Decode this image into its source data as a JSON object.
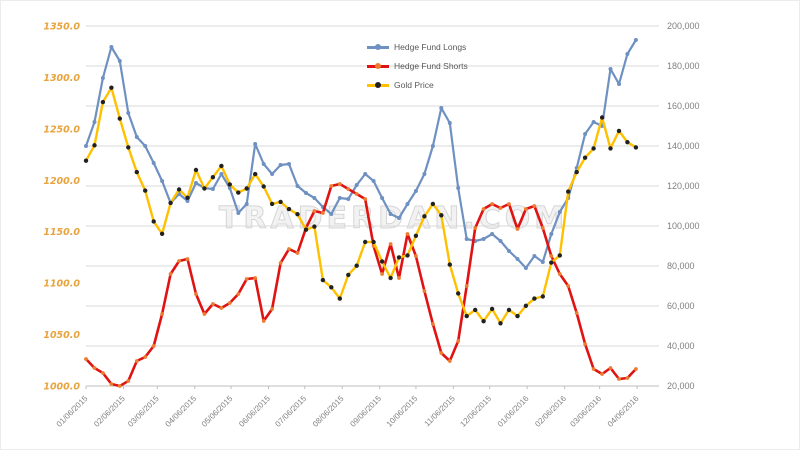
{
  "watermark": "TRADERDAN.COM",
  "chart_data": {
    "type": "line",
    "title": "",
    "grid": true,
    "legend_position": "top-center",
    "watermark": "TRADERDAN.COM",
    "x_labels": [
      "01/06/2015",
      "02/06/2015",
      "03/06/2015",
      "04/06/2015",
      "05/06/2015",
      "06/06/2015",
      "07/06/2015",
      "08/06/2015",
      "09/06/2015",
      "10/06/2015",
      "11/06/2015",
      "12/06/2015",
      "01/06/2016",
      "02/06/2016",
      "03/06/2016",
      "04/06/2016"
    ],
    "left_axis": {
      "title": "",
      "min": 1000,
      "max": 1350,
      "step": 50,
      "labels": [
        "1350.0",
        "1300.0",
        "1250.0",
        "1200.0",
        "1150.0",
        "1100.0",
        "1050.0",
        "1000.0"
      ],
      "label_color": "#e8a33c"
    },
    "right_axis": {
      "title": "",
      "min": 20000,
      "max": 200000,
      "step": 20000,
      "labels": [
        "200,000",
        "180,000",
        "160,000",
        "140,000",
        "120,000",
        "100,000",
        "80,000",
        "60,000",
        "40,000",
        "20,000"
      ],
      "label_color": "#7f7f7f"
    },
    "series": [
      {
        "name": "Hedge Fund Longs",
        "axis": "right",
        "color": "#6e91c2",
        "marker_color": "#6e91c2",
        "values": [
          140000,
          152000,
          174000,
          189500,
          182500,
          156500,
          144500,
          140000,
          131500,
          122500,
          111500,
          116000,
          112500,
          121500,
          119000,
          118500,
          126000,
          119000,
          106500,
          111000,
          141000,
          131000,
          126000,
          130500,
          131000,
          120000,
          116500,
          114000,
          109500,
          106000,
          114000,
          113500,
          120500,
          126000,
          122500,
          114000,
          106000,
          104000,
          111000,
          117500,
          126000,
          140000,
          159000,
          151500,
          119000,
          93500,
          92500,
          93500,
          96000,
          92500,
          87500,
          83500,
          79000,
          85000,
          82000,
          96000,
          107000,
          114000,
          129000,
          146000,
          152000,
          150000,
          178500,
          171000,
          186000,
          193000
        ]
      },
      {
        "name": "Hedge Fund Shorts",
        "axis": "right",
        "color": "#e01212",
        "marker_color": "#ed7d31",
        "values": [
          33500,
          29000,
          26500,
          21000,
          20000,
          22500,
          32500,
          34500,
          40000,
          56000,
          76000,
          82500,
          83500,
          66000,
          56000,
          61000,
          59000,
          61500,
          66000,
          73500,
          74000,
          52500,
          58500,
          81500,
          88500,
          86500,
          99000,
          107500,
          106500,
          120000,
          121000,
          118500,
          116000,
          113500,
          90000,
          76000,
          91000,
          74000,
          96000,
          85000,
          67500,
          51000,
          36500,
          32500,
          42500,
          70000,
          99000,
          108500,
          111000,
          109000,
          111000,
          98500,
          108500,
          110000,
          99000,
          85000,
          76000,
          70000,
          56500,
          41000,
          28500,
          26000,
          29000,
          23500,
          24000,
          28500
        ]
      },
      {
        "name": "Gold Price",
        "axis": "left",
        "color": "#ffc000",
        "marker_color": "#212121",
        "values": [
          1219,
          1234,
          1276,
          1290,
          1260,
          1232,
          1208,
          1190,
          1160,
          1148,
          1178,
          1191,
          1183,
          1210,
          1192,
          1203,
          1214,
          1196,
          1188,
          1192,
          1206,
          1194,
          1177,
          1179,
          1172,
          1167,
          1152,
          1155,
          1103,
          1096,
          1085,
          1108,
          1117,
          1140,
          1140,
          1121,
          1105,
          1125,
          1127,
          1146,
          1165,
          1177,
          1166,
          1118,
          1090,
          1068,
          1074,
          1063,
          1075,
          1061,
          1074,
          1068,
          1078,
          1085,
          1087,
          1120,
          1127,
          1189,
          1208,
          1222,
          1231,
          1261,
          1231,
          1248,
          1237,
          1232
        ]
      }
    ],
    "colors": {
      "gridline": "#d9d9d9",
      "axis_line": "#bfbfbf",
      "legend_text": "#595959",
      "watermark": "#d6d6d6"
    }
  }
}
